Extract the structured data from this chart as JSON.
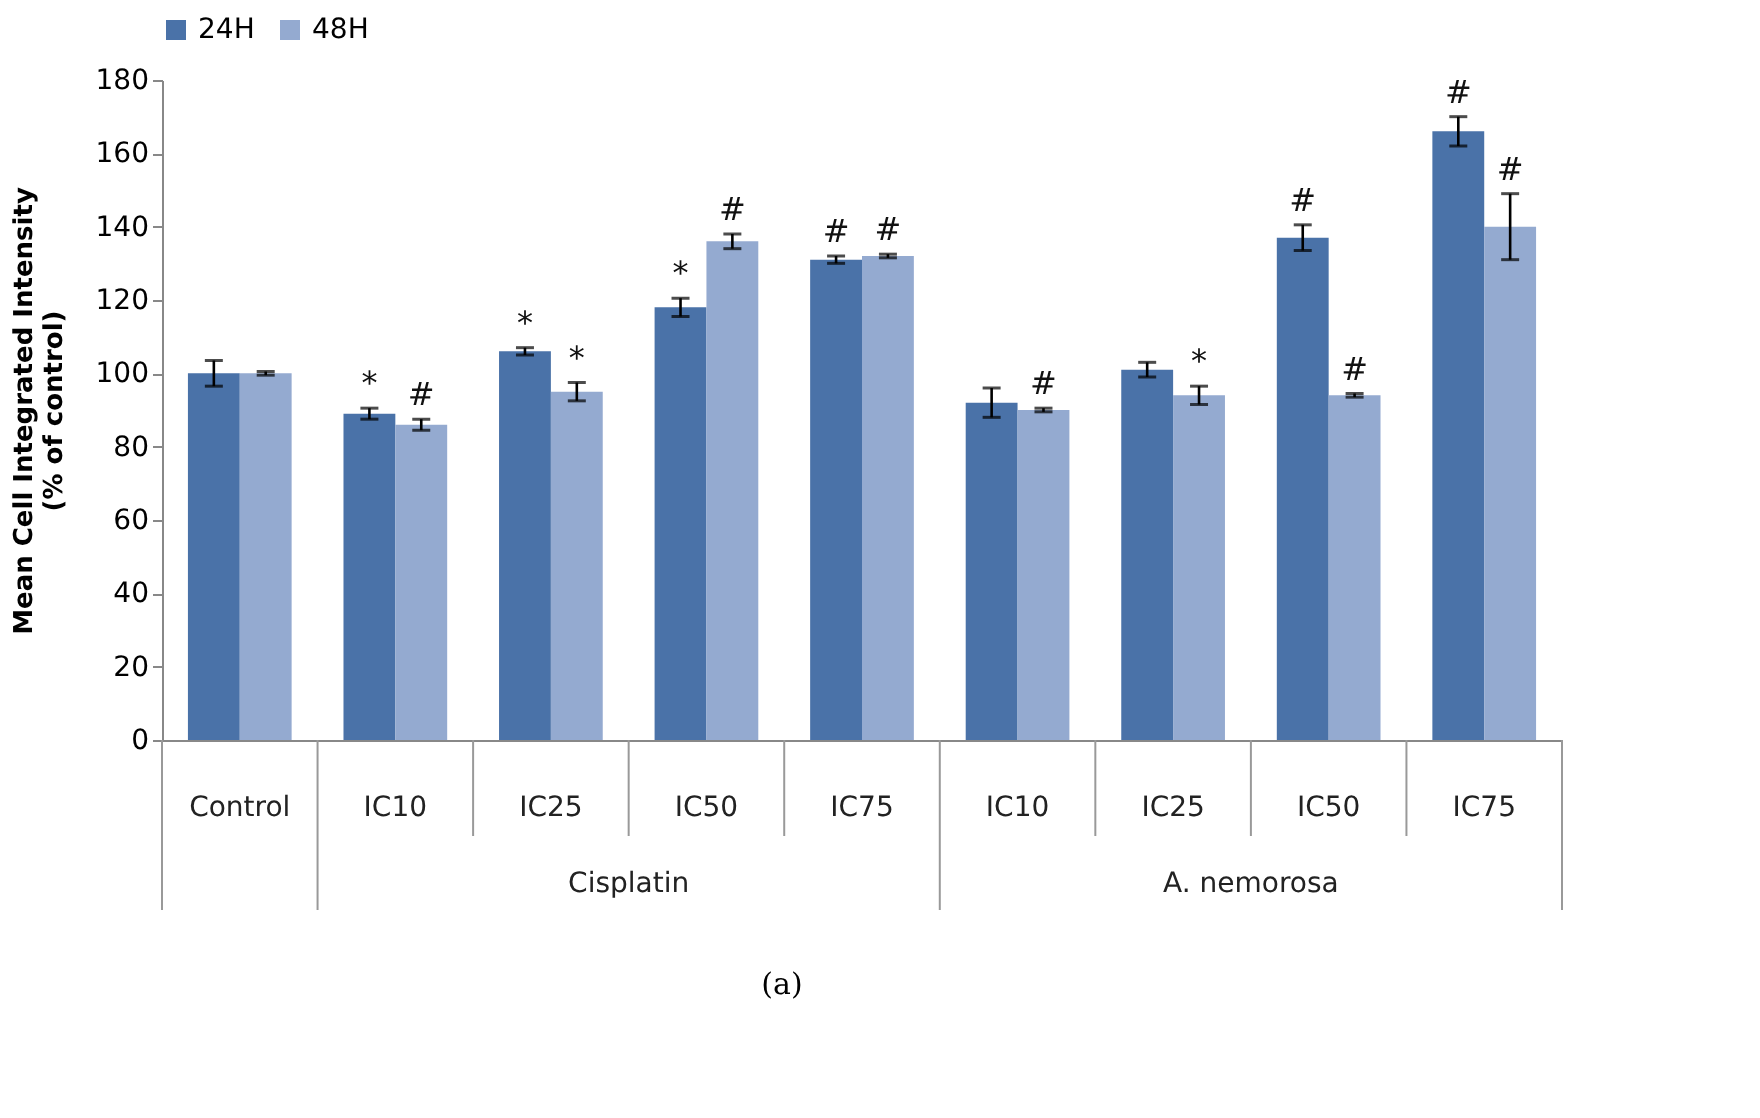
{
  "chart_data": {
    "type": "bar",
    "ylabel": "Mean Cell Integrated Intensity\n(% of control)",
    "categories": [
      "Control",
      "IC10",
      "IC25",
      "IC50",
      "IC75",
      "IC10",
      "IC25",
      "IC50",
      "IC75"
    ],
    "series": [
      {
        "name": "24H",
        "color": "#4a72a8",
        "values": [
          100,
          89,
          106,
          118,
          131,
          92,
          101,
          137,
          166
        ],
        "errors": [
          3.5,
          1.5,
          1,
          2.5,
          1,
          4,
          2,
          3.5,
          4
        ],
        "value_labels": [
          null,
          "*",
          "*",
          "*",
          "#",
          null,
          null,
          "#",
          "#"
        ]
      },
      {
        "name": "48H",
        "color": "#94aad0",
        "values": [
          100,
          86,
          95,
          136,
          132,
          90,
          94,
          94,
          140
        ],
        "errors": [
          0.5,
          1.5,
          2.5,
          2,
          0.5,
          0.5,
          2.5,
          0.5,
          9
        ],
        "value_labels": [
          null,
          "#",
          "*",
          "#",
          "#",
          "#",
          "*",
          "#",
          "#"
        ]
      }
    ],
    "ylim": [
      0,
      180
    ],
    "yticks": [
      0,
      20,
      40,
      60,
      80,
      100,
      120,
      140,
      160,
      180
    ],
    "legend": "top",
    "annotations": [
      "Cisplatin",
      "A. nemorosa",
      "(a)"
    ]
  }
}
